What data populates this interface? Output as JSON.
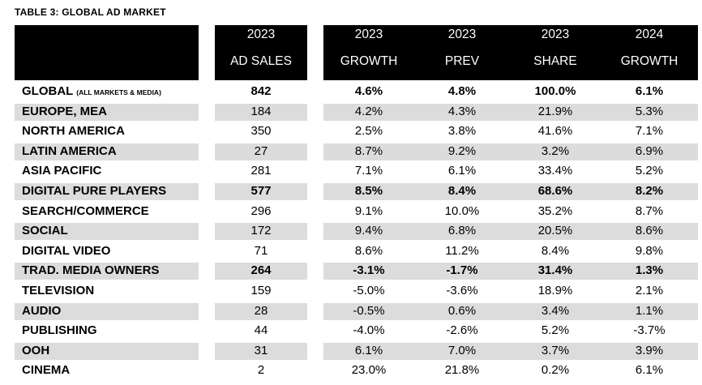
{
  "title": "TABLE 3: GLOBAL AD MARKET",
  "columns": [
    {
      "line1": "2023",
      "line2": "AD SALES"
    },
    {
      "line1": "2023",
      "line2": "GROWTH"
    },
    {
      "line1": "2023",
      "line2": "PREV"
    },
    {
      "line1": "2023",
      "line2": "SHARE"
    },
    {
      "line1": "2024",
      "line2": "GROWTH"
    }
  ],
  "rows": [
    {
      "label": "GLOBAL",
      "note": "(ALL MARKETS & MEDIA)",
      "bold": true,
      "shaded": false,
      "values": [
        "842",
        "4.6%",
        "4.8%",
        "100.0%",
        "6.1%"
      ]
    },
    {
      "label": "EUROPE, MEA",
      "note": "",
      "bold": false,
      "shaded": true,
      "values": [
        "184",
        "4.2%",
        "4.3%",
        "21.9%",
        "5.3%"
      ]
    },
    {
      "label": "NORTH AMERICA",
      "note": "",
      "bold": false,
      "shaded": false,
      "values": [
        "350",
        "2.5%",
        "3.8%",
        "41.6%",
        "7.1%"
      ]
    },
    {
      "label": "LATIN AMERICA",
      "note": "",
      "bold": false,
      "shaded": true,
      "values": [
        "27",
        "8.7%",
        "9.2%",
        "3.2%",
        "6.9%"
      ]
    },
    {
      "label": "ASIA PACIFIC",
      "note": "",
      "bold": false,
      "shaded": false,
      "values": [
        "281",
        "7.1%",
        "6.1%",
        "33.4%",
        "5.2%"
      ]
    },
    {
      "label": "DIGITAL PURE PLAYERS",
      "note": "",
      "bold": true,
      "shaded": true,
      "values": [
        "577",
        "8.5%",
        "8.4%",
        "68.6%",
        "8.2%"
      ]
    },
    {
      "label": "SEARCH/COMMERCE",
      "note": "",
      "bold": false,
      "shaded": false,
      "values": [
        "296",
        "9.1%",
        "10.0%",
        "35.2%",
        "8.7%"
      ]
    },
    {
      "label": "SOCIAL",
      "note": "",
      "bold": false,
      "shaded": true,
      "values": [
        "172",
        "9.4%",
        "6.8%",
        "20.5%",
        "8.6%"
      ]
    },
    {
      "label": "DIGITAL VIDEO",
      "note": "",
      "bold": false,
      "shaded": false,
      "values": [
        "71",
        "8.6%",
        "11.2%",
        "8.4%",
        "9.8%"
      ]
    },
    {
      "label": "TRAD. MEDIA OWNERS",
      "note": "",
      "bold": true,
      "shaded": true,
      "values": [
        "264",
        "-3.1%",
        "-1.7%",
        "31.4%",
        "1.3%"
      ]
    },
    {
      "label": "TELEVISION",
      "note": "",
      "bold": false,
      "shaded": false,
      "values": [
        "159",
        "-5.0%",
        "-3.6%",
        "18.9%",
        "2.1%"
      ]
    },
    {
      "label": "AUDIO",
      "note": "",
      "bold": false,
      "shaded": true,
      "values": [
        "28",
        "-0.5%",
        "0.6%",
        "3.4%",
        "1.1%"
      ]
    },
    {
      "label": "PUBLISHING",
      "note": "",
      "bold": false,
      "shaded": false,
      "values": [
        "44",
        "-4.0%",
        "-2.6%",
        "5.2%",
        "-3.7%"
      ]
    },
    {
      "label": "OOH",
      "note": "",
      "bold": false,
      "shaded": true,
      "values": [
        "31",
        "6.1%",
        "7.0%",
        "3.7%",
        "3.9%"
      ]
    },
    {
      "label": "CINEMA",
      "note": "",
      "bold": false,
      "shaded": false,
      "values": [
        "2",
        "23.0%",
        "21.8%",
        "0.2%",
        "6.1%"
      ]
    }
  ]
}
